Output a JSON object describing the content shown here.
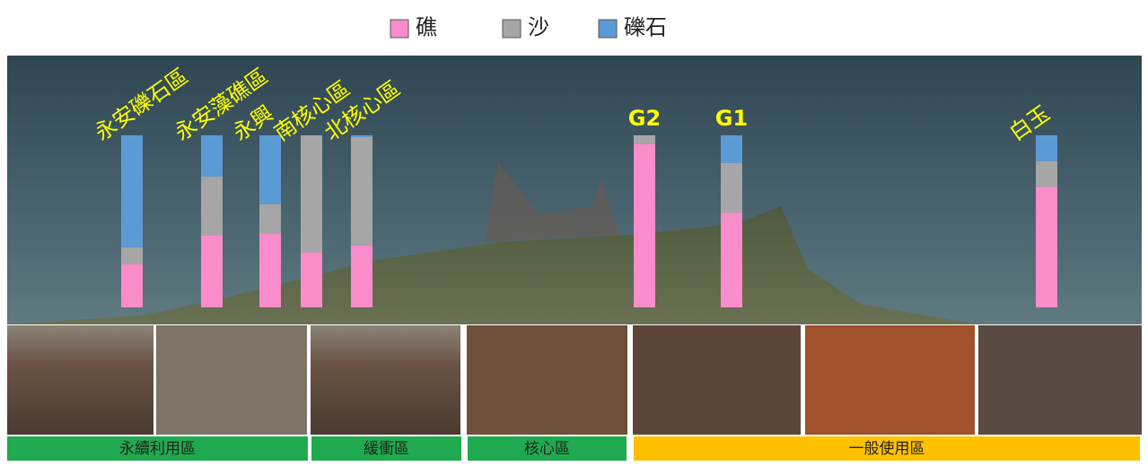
{
  "chart_data": {
    "type": "stacked-bar",
    "categories": [
      "永安礫石區",
      "永安藻礁區",
      "永興",
      "南核心區",
      "北核心區",
      "G2",
      "G1",
      "白玉"
    ],
    "series": [
      {
        "name": "礁",
        "color": "#f98ccb",
        "values": [
          25,
          42,
          43,
          32,
          36,
          95,
          55,
          70
        ]
      },
      {
        "name": "沙",
        "color": "#a6a6a6",
        "values": [
          10,
          34,
          17,
          68,
          63,
          5,
          29,
          15
        ]
      },
      {
        "name": "礫石",
        "color": "#5b9bd5",
        "values": [
          65,
          24,
          40,
          0,
          1,
          0,
          16,
          15
        ]
      }
    ],
    "ylim": [
      0,
      100
    ]
  },
  "zones": [
    "永續利用區",
    "緩衝區",
    "核心區",
    "一般使用區"
  ]
}
